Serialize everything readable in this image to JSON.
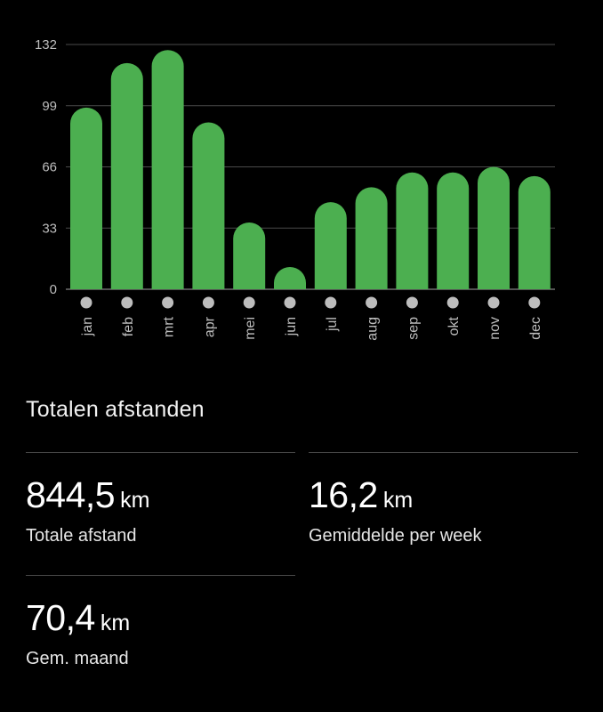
{
  "chart_data": {
    "type": "bar",
    "categories": [
      "jan",
      "feb",
      "mrt",
      "apr",
      "mei",
      "jun",
      "jul",
      "aug",
      "sep",
      "okt",
      "nov",
      "dec"
    ],
    "values": [
      98,
      122,
      129,
      90,
      36,
      12,
      47,
      55,
      63,
      63,
      66,
      61
    ],
    "yticks": [
      "0",
      "33",
      "66",
      "99",
      "132"
    ],
    "ylim": [
      0,
      132
    ],
    "grid": true,
    "bar_color": "#4caf50",
    "marker_color": "#bdbdbd"
  },
  "section": {
    "title": "Totalen afstanden"
  },
  "stats": {
    "total": {
      "value": "844,5",
      "unit": "km",
      "label": "Totale afstand"
    },
    "week": {
      "value": "16,2",
      "unit": "km",
      "label": "Gemiddelde per week"
    },
    "month": {
      "value": "70,4",
      "unit": "km",
      "label": "Gem. maand"
    }
  }
}
